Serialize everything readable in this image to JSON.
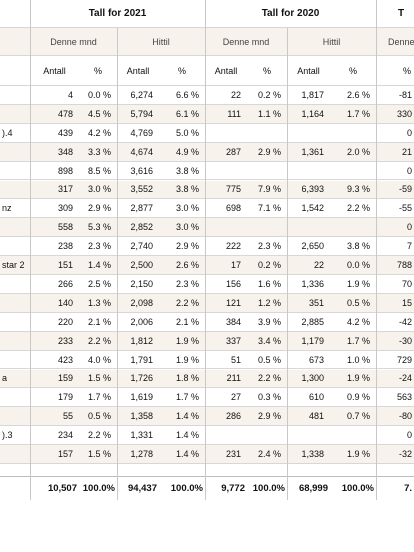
{
  "groups": [
    "Tall for 2021",
    "Tall for 2020",
    "T"
  ],
  "subgroups": [
    "Denne mnd",
    "Hittil",
    "Denne mnd",
    "Hittil",
    "Denne"
  ],
  "columns": [
    "Antall",
    "%",
    "Antall",
    "%",
    "Antall",
    "%",
    "Antall",
    "%",
    "%"
  ],
  "rows": [
    {
      "name": "",
      "cells": [
        "4",
        "0.0 %",
        "6,274",
        "6.6 %",
        "22",
        "0.2 %",
        "1,817",
        "2.6 %",
        "-81"
      ]
    },
    {
      "name": "",
      "cells": [
        "478",
        "4.5 %",
        "5,794",
        "6.1 %",
        "111",
        "1.1 %",
        "1,164",
        "1.7 %",
        "330"
      ]
    },
    {
      "name": ").4",
      "cells": [
        "439",
        "4.2 %",
        "4,769",
        "5.0 %",
        "",
        "",
        "",
        "",
        "0"
      ]
    },
    {
      "name": "",
      "cells": [
        "348",
        "3.3 %",
        "4,674",
        "4.9 %",
        "287",
        "2.9 %",
        "1,361",
        "2.0 %",
        "21"
      ]
    },
    {
      "name": "",
      "cells": [
        "898",
        "8.5 %",
        "3,616",
        "3.8 %",
        "",
        "",
        "",
        "",
        "0"
      ]
    },
    {
      "name": "",
      "cells": [
        "317",
        "3.0 %",
        "3,552",
        "3.8 %",
        "775",
        "7.9 %",
        "6,393",
        "9.3 %",
        "-59"
      ]
    },
    {
      "name": "nz",
      "cells": [
        "309",
        "2.9 %",
        "2,877",
        "3.0 %",
        "698",
        "7.1 %",
        "1,542",
        "2.2 %",
        "-55"
      ]
    },
    {
      "name": "",
      "cells": [
        "558",
        "5.3 %",
        "2,852",
        "3.0 %",
        "",
        "",
        "",
        "",
        "0"
      ]
    },
    {
      "name": "",
      "cells": [
        "238",
        "2.3 %",
        "2,740",
        "2.9 %",
        "222",
        "2.3 %",
        "2,650",
        "3.8 %",
        "7"
      ]
    },
    {
      "name": "star 2",
      "cells": [
        "151",
        "1.4 %",
        "2,500",
        "2.6 %",
        "17",
        "0.2 %",
        "22",
        "0.0 %",
        "788"
      ]
    },
    {
      "name": "",
      "cells": [
        "266",
        "2.5 %",
        "2,150",
        "2.3 %",
        "156",
        "1.6 %",
        "1,336",
        "1.9 %",
        "70"
      ]
    },
    {
      "name": "",
      "cells": [
        "140",
        "1.3 %",
        "2,098",
        "2.2 %",
        "121",
        "1.2 %",
        "351",
        "0.5 %",
        "15"
      ]
    },
    {
      "name": "",
      "cells": [
        "220",
        "2.1 %",
        "2,006",
        "2.1 %",
        "384",
        "3.9 %",
        "2,885",
        "4.2 %",
        "-42"
      ]
    },
    {
      "name": "",
      "cells": [
        "233",
        "2.2 %",
        "1,812",
        "1.9 %",
        "337",
        "3.4 %",
        "1,179",
        "1.7 %",
        "-30"
      ]
    },
    {
      "name": "",
      "cells": [
        "423",
        "4.0 %",
        "1,791",
        "1.9 %",
        "51",
        "0.5 %",
        "673",
        "1.0 %",
        "729"
      ]
    },
    {
      "name": "a",
      "cells": [
        "159",
        "1.5 %",
        "1,726",
        "1.8 %",
        "211",
        "2.2 %",
        "1,300",
        "1.9 %",
        "-24"
      ]
    },
    {
      "name": "",
      "cells": [
        "179",
        "1.7 %",
        "1,619",
        "1.7 %",
        "27",
        "0.3 %",
        "610",
        "0.9 %",
        "563"
      ]
    },
    {
      "name": "",
      "cells": [
        "55",
        "0.5 %",
        "1,358",
        "1.4 %",
        "286",
        "2.9 %",
        "481",
        "0.7 %",
        "-80"
      ]
    },
    {
      "name": ").3",
      "cells": [
        "234",
        "2.2 %",
        "1,331",
        "1.4 %",
        "",
        "",
        "",
        "",
        "0"
      ]
    },
    {
      "name": "",
      "cells": [
        "157",
        "1.5 %",
        "1,278",
        "1.4 %",
        "231",
        "2.4 %",
        "1,338",
        "1.9 %",
        "-32"
      ]
    }
  ],
  "totals": [
    "10,507",
    "100.0%",
    "94,437",
    "100.0%",
    "9,772",
    "100.0%",
    "68,999",
    "100.0%",
    "7."
  ]
}
